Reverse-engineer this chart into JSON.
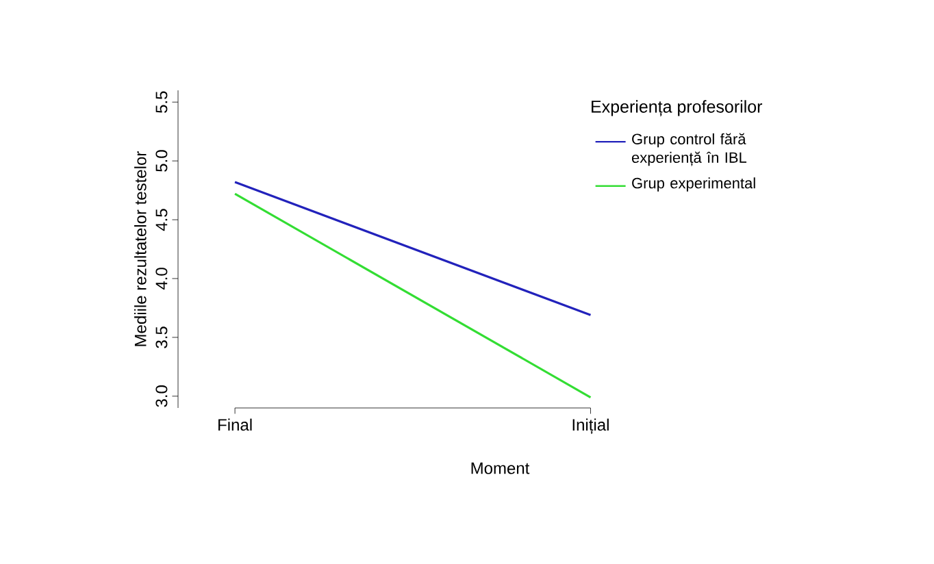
{
  "chart_data": {
    "type": "line",
    "xlabel": "Moment",
    "ylabel": "Mediile rezultatelor testelor",
    "legend_title": "Experiența profesorilor",
    "categories": [
      "Final",
      "Inițial"
    ],
    "series": [
      {
        "name": "Grup control fără experiență în IBL",
        "color": "#2222bb",
        "values": [
          4.82,
          3.69
        ]
      },
      {
        "name": "Grup experimental",
        "color": "#33dd33",
        "values": [
          4.72,
          2.99
        ]
      }
    ],
    "ylim": [
      2.9,
      5.6
    ],
    "yticks": [
      {
        "value": 3,
        "label": "3.0"
      },
      {
        "value": 3.5,
        "label": "3.5"
      },
      {
        "value": 4,
        "label": "4.0"
      },
      {
        "value": 4.5,
        "label": "4.5"
      },
      {
        "value": 5,
        "label": "5.0"
      },
      {
        "value": 5.5,
        "label": "5.5"
      }
    ],
    "legend": "top right",
    "marker": "none",
    "line_style": "solid",
    "grid": false
  }
}
